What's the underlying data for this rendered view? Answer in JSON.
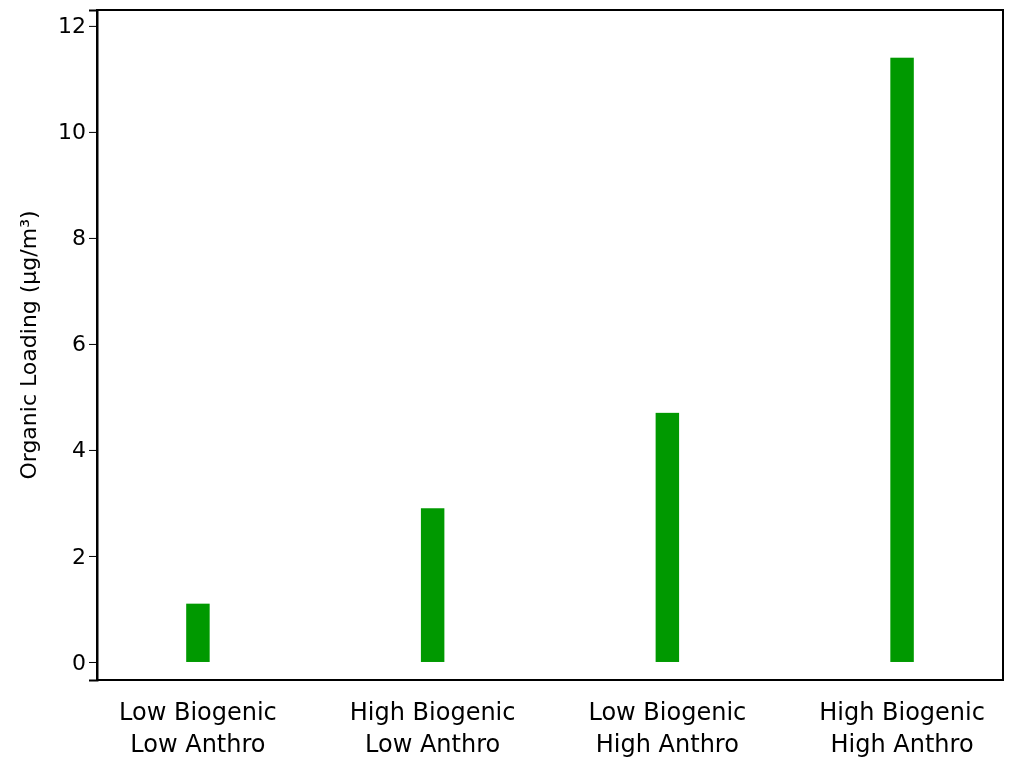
{
  "chart_data": {
    "type": "bar",
    "ylabel": "Organic Loading (µg/m³)",
    "categories": [
      "Low Biogenic\nLow Anthro",
      "High Biogenic\nLow Anthro",
      "Low Biogenic\nHigh Anthro",
      "High Biogenic\nHigh Anthro"
    ],
    "values": [
      1.1,
      2.9,
      4.7,
      11.4
    ],
    "color": "#009900",
    "ylim": [
      -0.34,
      12.3
    ],
    "yticks": [
      0,
      2,
      4,
      6,
      8,
      10,
      12
    ],
    "grid": false
  }
}
